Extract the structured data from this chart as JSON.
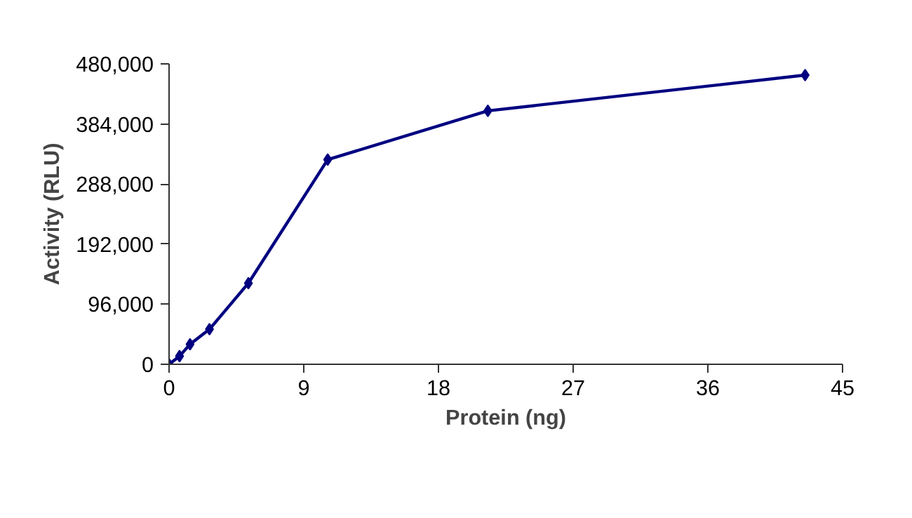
{
  "chart_data": {
    "type": "line",
    "xlabel": "Protein (ng)",
    "ylabel": "Activity (RLU)",
    "x": [
      0,
      0.7,
      1.4,
      2.7,
      5.3,
      10.6,
      21.3,
      42.5
    ],
    "series": [
      {
        "color": "#000080",
        "values": [
          0,
          13000,
          32000,
          56000,
          129600,
          327000,
          405000,
          462000
        ]
      }
    ],
    "xlim": [
      0,
      45
    ],
    "xticks": [
      0,
      9,
      18,
      27,
      36,
      45
    ],
    "ylim": [
      0,
      480000
    ],
    "yticks": [
      {
        "value": 0,
        "label": "0"
      },
      {
        "value": 96000,
        "label": "96,000"
      },
      {
        "value": 192000,
        "label": "192,000"
      },
      {
        "value": 288000,
        "label": "288,000"
      },
      {
        "value": 384000,
        "label": "384,000"
      },
      {
        "value": 480000,
        "label": "480,000"
      }
    ],
    "grid": false,
    "marker": "diamond",
    "line_style": "solid"
  }
}
